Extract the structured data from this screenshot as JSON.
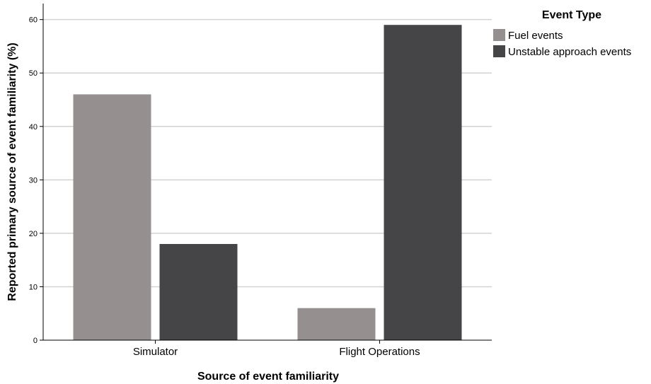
{
  "chart_data": {
    "type": "bar",
    "categories": [
      "Simulator",
      "Flight Operations"
    ],
    "series": [
      {
        "name": "Fuel events",
        "values": [
          46,
          6
        ],
        "color": "#958f8f"
      },
      {
        "name": "Unstable approach events",
        "values": [
          18,
          59
        ],
        "color": "#454548"
      }
    ],
    "xlabel": "Source of event familiarity",
    "ylabel": "Reported primary source of event familiarity (%)",
    "ylim": [
      0,
      63
    ],
    "yticks": [
      0,
      10,
      20,
      30,
      40,
      50,
      60
    ],
    "grid": true,
    "legend": {
      "title": "Event Type",
      "placement": "right"
    }
  }
}
